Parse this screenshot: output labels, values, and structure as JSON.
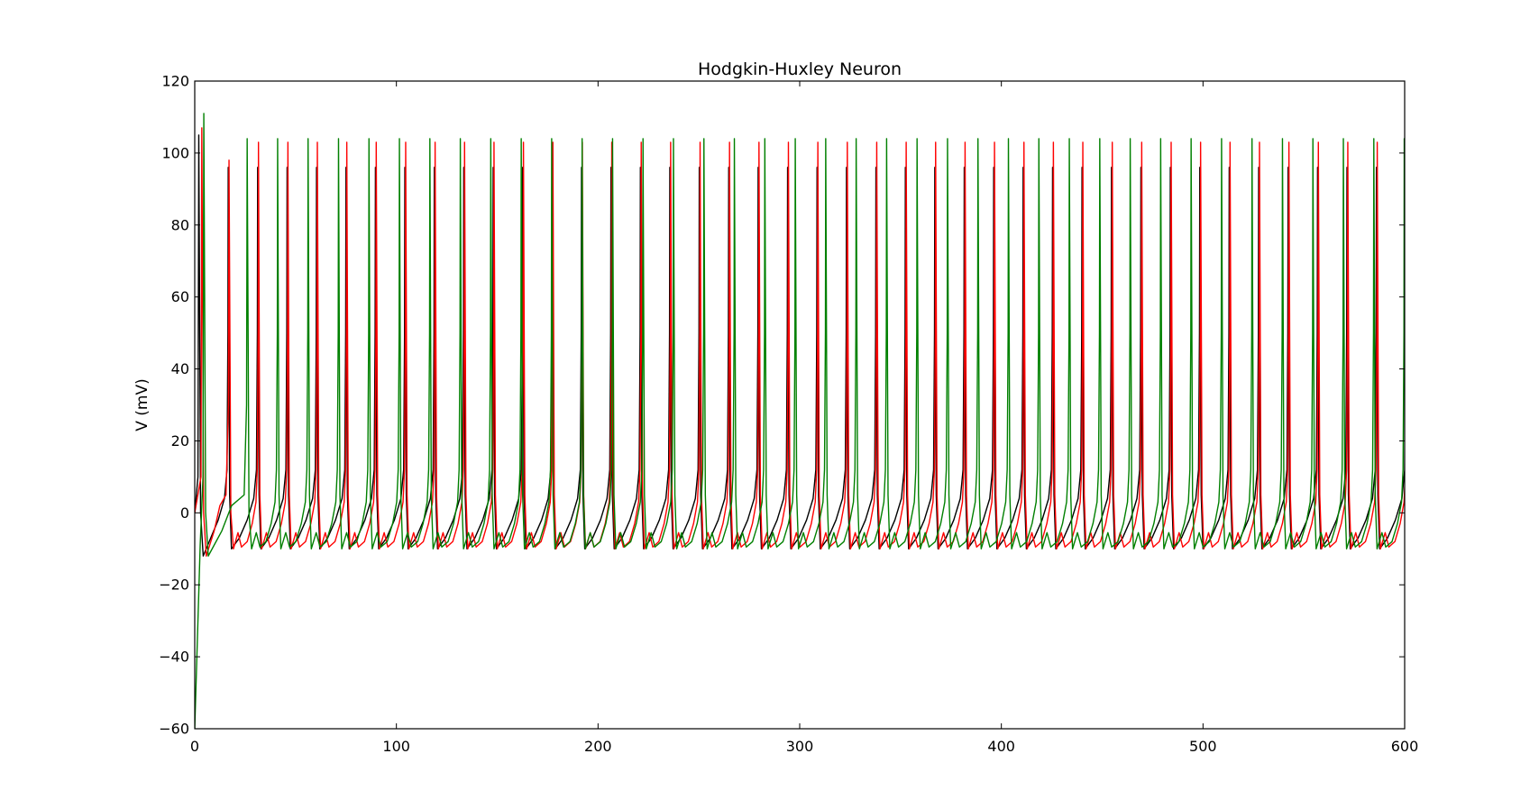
{
  "chart_data": {
    "type": "line",
    "title": "Hodgkin-Huxley Neuron",
    "xlabel": "",
    "ylabel": "V (mV)",
    "xlim": [
      0,
      600
    ],
    "ylim": [
      -60,
      120
    ],
    "x_ticks": [
      0,
      100,
      200,
      300,
      400,
      500,
      600
    ],
    "y_ticks": [
      -60,
      -40,
      -20,
      0,
      20,
      40,
      60,
      80,
      100,
      120
    ],
    "x_tick_labels": [
      "0",
      "100",
      "200",
      "300",
      "400",
      "500",
      "600"
    ],
    "y_tick_labels": [
      "−60",
      "−40",
      "−20",
      "0",
      "20",
      "40",
      "60",
      "80",
      "100",
      "120"
    ],
    "grid": false,
    "legend": "none",
    "series": [
      {
        "color": "#000000",
        "start_v": 0,
        "first_spike_t": 2,
        "first_spike_peak": 105,
        "interval_ms": 14.6,
        "peak_v": 96,
        "trough_v": -10,
        "subthreshold_bumps": false,
        "approx_spike_count": 41
      },
      {
        "color": "#ff0000",
        "start_v": 0,
        "first_spike_t": 3.5,
        "first_spike_peak": 107,
        "second_spike_t": 17,
        "second_spike_peak": 98,
        "interval_ms": 14.6,
        "peak_v": 103,
        "trough_v": -10,
        "subthreshold_bumps": true,
        "approx_spike_count": 42
      },
      {
        "color": "#008000",
        "start_v": -60,
        "first_spike_t": 4.5,
        "first_spike_peak": 111,
        "second_spike_t": 26,
        "interval_ms": 15.1,
        "peak_v": 104,
        "trough_v": -10,
        "subthreshold_bumps": true,
        "approx_spike_count": 40
      }
    ]
  }
}
